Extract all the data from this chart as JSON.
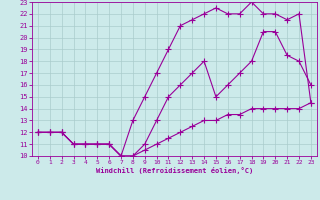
{
  "xlabel": "Windchill (Refroidissement éolien,°C)",
  "ylabel": "",
  "bg_color": "#cceaea",
  "line_color": "#990099",
  "grid_color": "#aacccc",
  "xlim": [
    -0.5,
    23.5
  ],
  "ylim": [
    10,
    23
  ],
  "xticks": [
    0,
    1,
    2,
    3,
    4,
    5,
    6,
    7,
    8,
    9,
    10,
    11,
    12,
    13,
    14,
    15,
    16,
    17,
    18,
    19,
    20,
    21,
    22,
    23
  ],
  "yticks": [
    10,
    11,
    12,
    13,
    14,
    15,
    16,
    17,
    18,
    19,
    20,
    21,
    22,
    23
  ],
  "line1_x": [
    0,
    1,
    2,
    3,
    4,
    5,
    6,
    7,
    8,
    9,
    10,
    11,
    12,
    13,
    14,
    15,
    16,
    17,
    18,
    19,
    20,
    21,
    22,
    23
  ],
  "line1_y": [
    12,
    12,
    12,
    11,
    11,
    11,
    11,
    10,
    10,
    10.5,
    11,
    11.5,
    12,
    12.5,
    13,
    13,
    13.5,
    13.5,
    14,
    14,
    14,
    14,
    14,
    14.5
  ],
  "line2_x": [
    0,
    1,
    2,
    3,
    4,
    5,
    6,
    7,
    8,
    9,
    10,
    11,
    12,
    13,
    14,
    15,
    16,
    17,
    18,
    19,
    20,
    21,
    22,
    23
  ],
  "line2_y": [
    12,
    12,
    12,
    11,
    11,
    11,
    11,
    10,
    10,
    11,
    13,
    15,
    16,
    17,
    18,
    15,
    16,
    17,
    18,
    20.5,
    20.5,
    18.5,
    18,
    16
  ],
  "line3_x": [
    0,
    1,
    2,
    3,
    4,
    5,
    6,
    7,
    8,
    9,
    10,
    11,
    12,
    13,
    14,
    15,
    16,
    17,
    18,
    19,
    20,
    21,
    22,
    23
  ],
  "line3_y": [
    12,
    12,
    12,
    11,
    11,
    11,
    11,
    10,
    13,
    15,
    17,
    19,
    21,
    21.5,
    22,
    22.5,
    22,
    22,
    23,
    22,
    22,
    21.5,
    22,
    14.5
  ]
}
